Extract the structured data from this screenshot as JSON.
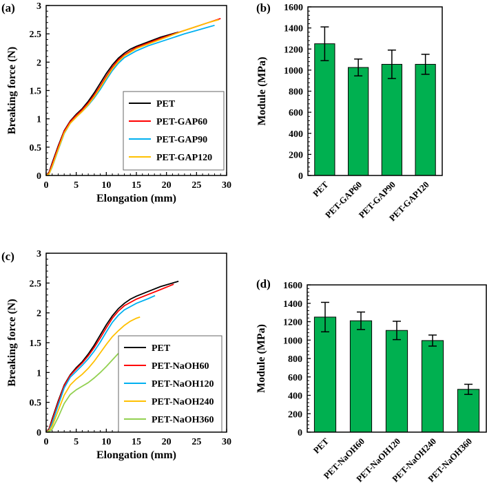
{
  "chart_data": [
    {
      "panel": "(a)",
      "type": "line",
      "xlabel": "Elongation (mm)",
      "ylabel": "Breaking force (N)",
      "xlim": [
        0,
        30
      ],
      "ylim": [
        0,
        3
      ],
      "xticks": [
        "0",
        "5",
        "10",
        "15",
        "20",
        "25",
        "30"
      ],
      "yticks": [
        "0",
        "0.5",
        "1",
        "1.5",
        "2",
        "2.5",
        "3"
      ],
      "legend": "bottom-right",
      "series": [
        {
          "name": "PET",
          "color": "#000000",
          "x": [
            0,
            0.5,
            1,
            2,
            3,
            4,
            5,
            6,
            7,
            8,
            9,
            10,
            11,
            12,
            13,
            14,
            15,
            17,
            19,
            21,
            22
          ],
          "y": [
            0,
            0.06,
            0.22,
            0.52,
            0.79,
            0.96,
            1.08,
            1.18,
            1.31,
            1.46,
            1.63,
            1.8,
            1.95,
            2.07,
            2.16,
            2.23,
            2.28,
            2.36,
            2.44,
            2.5,
            2.53
          ]
        },
        {
          "name": "PET-GAP60",
          "color": "#ff0000",
          "x": [
            0,
            0.5,
            1,
            2,
            3,
            4,
            5,
            6,
            7,
            8,
            9,
            10,
            11,
            12,
            13,
            15,
            17,
            19,
            21,
            23,
            25,
            27,
            29
          ],
          "y": [
            0,
            0.05,
            0.2,
            0.5,
            0.78,
            0.95,
            1.06,
            1.16,
            1.28,
            1.42,
            1.58,
            1.75,
            1.91,
            2.04,
            2.13,
            2.26,
            2.34,
            2.42,
            2.49,
            2.56,
            2.63,
            2.7,
            2.77
          ]
        },
        {
          "name": "PET-GAP90",
          "color": "#00b0f0",
          "x": [
            0,
            0.5,
            1,
            2,
            3,
            4,
            5,
            6,
            7,
            8,
            9,
            10,
            11,
            12,
            13,
            15,
            17,
            19,
            21,
            23,
            25,
            27,
            28
          ],
          "y": [
            0,
            0.03,
            0.15,
            0.45,
            0.74,
            0.92,
            1.03,
            1.13,
            1.24,
            1.37,
            1.52,
            1.69,
            1.85,
            1.98,
            2.08,
            2.2,
            2.29,
            2.36,
            2.43,
            2.5,
            2.56,
            2.62,
            2.65
          ]
        },
        {
          "name": "PET-GAP120",
          "color": "#ffc000",
          "x": [
            0,
            0.5,
            1,
            2,
            3,
            4,
            5,
            6,
            7,
            8,
            9,
            10,
            11,
            12,
            13,
            15,
            17,
            19,
            21,
            23,
            25,
            27,
            28.7
          ],
          "y": [
            0,
            0.03,
            0.16,
            0.46,
            0.75,
            0.92,
            1.03,
            1.13,
            1.25,
            1.39,
            1.55,
            1.72,
            1.88,
            2.01,
            2.11,
            2.24,
            2.32,
            2.4,
            2.48,
            2.56,
            2.63,
            2.7,
            2.75
          ]
        }
      ]
    },
    {
      "panel": "(b)",
      "type": "bar",
      "ylabel": "Module (MPa)",
      "ylim": [
        0,
        1600
      ],
      "yticks": [
        "0",
        "200",
        "400",
        "600",
        "800",
        "1000",
        "1200",
        "1400",
        "1600"
      ],
      "categories": [
        "PET",
        "PET-GAP60",
        "PET-GAP90",
        "PET-GAP120"
      ],
      "values": [
        1250,
        1025,
        1055,
        1055
      ],
      "errors": [
        160,
        80,
        135,
        95
      ],
      "color": "#00b050"
    },
    {
      "panel": "(c)",
      "type": "line",
      "xlabel": "Elongation (mm)",
      "ylabel": "Breaking force (N)",
      "xlim": [
        0,
        30
      ],
      "ylim": [
        0,
        3
      ],
      "xticks": [
        "0",
        "5",
        "10",
        "15",
        "20",
        "25",
        "30"
      ],
      "yticks": [
        "0",
        "0.5",
        "1",
        "1.5",
        "2",
        "2.5",
        "3"
      ],
      "legend": "bottom-right",
      "series": [
        {
          "name": "PET",
          "color": "#000000",
          "x": [
            0,
            0.5,
            1,
            2,
            3,
            4,
            5,
            6,
            7,
            8,
            9,
            10,
            11,
            12,
            13,
            14,
            15,
            17,
            19,
            21,
            22
          ],
          "y": [
            0,
            0.06,
            0.22,
            0.52,
            0.79,
            0.96,
            1.08,
            1.18,
            1.31,
            1.46,
            1.63,
            1.8,
            1.95,
            2.07,
            2.16,
            2.23,
            2.28,
            2.36,
            2.44,
            2.5,
            2.53
          ]
        },
        {
          "name": "PET-NaOH60",
          "color": "#ff0000",
          "x": [
            0,
            0.5,
            1,
            2,
            3,
            4,
            5,
            6,
            7,
            8,
            9,
            10,
            11,
            12,
            13,
            15,
            17,
            19,
            21.2
          ],
          "y": [
            0,
            0.05,
            0.2,
            0.5,
            0.78,
            0.95,
            1.06,
            1.16,
            1.28,
            1.42,
            1.58,
            1.75,
            1.91,
            2.03,
            2.12,
            2.23,
            2.31,
            2.39,
            2.48
          ]
        },
        {
          "name": "PET-NaOH120",
          "color": "#00b0f0",
          "x": [
            0,
            0.5,
            1,
            2,
            3,
            4,
            5,
            6,
            7,
            8,
            9,
            10,
            11,
            12,
            13,
            15,
            17,
            18.1
          ],
          "y": [
            0,
            0.03,
            0.15,
            0.45,
            0.74,
            0.92,
            1.02,
            1.12,
            1.23,
            1.36,
            1.51,
            1.68,
            1.84,
            1.96,
            2.05,
            2.16,
            2.24,
            2.29
          ]
        },
        {
          "name": "PET-NaOH240",
          "color": "#ffc000",
          "x": [
            0,
            0.5,
            1,
            2,
            3,
            4,
            5,
            6,
            7,
            8,
            9,
            10,
            11,
            12,
            13,
            14,
            15,
            15.6
          ],
          "y": [
            0,
            0.02,
            0.1,
            0.36,
            0.62,
            0.79,
            0.89,
            0.97,
            1.07,
            1.19,
            1.33,
            1.47,
            1.6,
            1.7,
            1.79,
            1.86,
            1.91,
            1.93
          ]
        },
        {
          "name": "PET-NaOH360",
          "color": "#92d050",
          "x": [
            0,
            0.5,
            1,
            2,
            3,
            4,
            5,
            6,
            7,
            8,
            9,
            10,
            11,
            12,
            13,
            14.1
          ],
          "y": [
            0,
            0.01,
            0.05,
            0.25,
            0.48,
            0.63,
            0.71,
            0.77,
            0.83,
            0.91,
            1.0,
            1.1,
            1.21,
            1.32,
            1.43,
            1.51
          ]
        }
      ]
    },
    {
      "panel": "(d)",
      "type": "bar",
      "ylabel": "Module (MPa)",
      "ylim": [
        0,
        1600
      ],
      "yticks": [
        "0",
        "200",
        "400",
        "600",
        "800",
        "1000",
        "1200",
        "1400",
        "1600"
      ],
      "categories": [
        "PET",
        "PET-NaOH60",
        "PET-NaOH120",
        "PET-NaOH240",
        "PET-NaOH360"
      ],
      "values": [
        1250,
        1210,
        1105,
        995,
        465
      ],
      "errors": [
        160,
        95,
        100,
        60,
        55
      ],
      "color": "#00b050"
    }
  ]
}
